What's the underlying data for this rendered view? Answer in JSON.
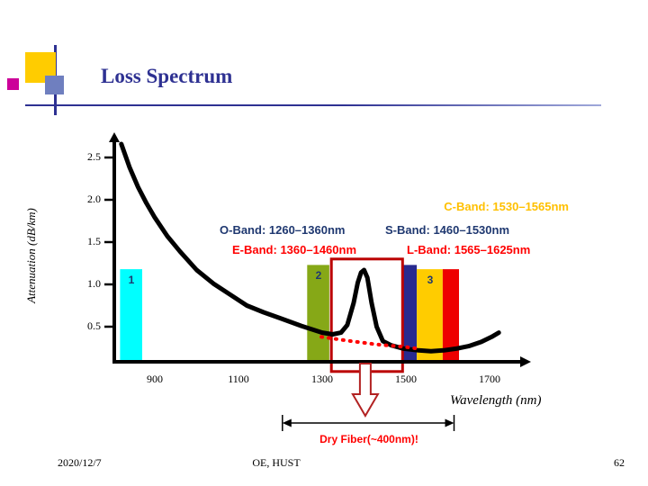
{
  "header": {
    "title": "Loss Spectrum"
  },
  "legend": {
    "c_band": {
      "text": "C-Band: 1530–1565nm",
      "color": "#FFC000"
    },
    "o_band": {
      "text": "O-Band: 1260–1360nm",
      "color": "#1F3870"
    },
    "s_band": {
      "text": "S-Band: 1460–1530nm",
      "color": "#1F3870"
    },
    "e_band": {
      "text": "E-Band: 1360–1460nm",
      "color": "#FF0000"
    },
    "l_band": {
      "text": "L-Band: 1565–1625nm",
      "color": "#FF0000"
    }
  },
  "annotations": {
    "dry_fiber_label": "Dry Fiber(~400nm)!"
  },
  "footer": {
    "date": "2020/12/7",
    "org": "OE, HUST",
    "page": "62"
  },
  "chart_data": {
    "type": "line",
    "title": "Loss Spectrum",
    "xlabel": "Wavelength (nm)",
    "ylabel": "Attenuation (dB/km)",
    "xlim": [
      800,
      1760
    ],
    "ylim": [
      0,
      2.75
    ],
    "x_ticks": [
      900,
      1100,
      1300,
      1500,
      1700
    ],
    "y_ticks": [
      {
        "v": 2.5,
        "label": "2.5"
      },
      {
        "v": 2.0,
        "label": "2.0"
      },
      {
        "v": 1.5,
        "label": "1.5"
      },
      {
        "v": 1.0,
        "label": "1.0"
      },
      {
        "v": 0.5,
        "label": "0.5"
      }
    ],
    "series": [
      {
        "name": "fiber-loss-curve",
        "color": "#000000",
        "width": 5,
        "x": [
          820,
          840,
          860,
          880,
          900,
          930,
          960,
          1000,
          1040,
          1080,
          1120,
          1160,
          1200,
          1250,
          1300,
          1325,
          1345,
          1360,
          1375,
          1385,
          1393,
          1400,
          1408,
          1418,
          1430,
          1445,
          1465,
          1495,
          1530,
          1560,
          1590,
          1620,
          1650,
          1680,
          1705,
          1722
        ],
        "y": [
          2.66,
          2.38,
          2.15,
          1.96,
          1.79,
          1.57,
          1.39,
          1.17,
          1.01,
          0.88,
          0.75,
          0.67,
          0.6,
          0.51,
          0.43,
          0.41,
          0.43,
          0.52,
          0.78,
          1.02,
          1.14,
          1.17,
          1.08,
          0.78,
          0.5,
          0.33,
          0.28,
          0.24,
          0.22,
          0.21,
          0.22,
          0.24,
          0.27,
          0.32,
          0.38,
          0.43
        ]
      },
      {
        "name": "dry-fiber-low-water-peak",
        "color": "#FF0000",
        "width": 4,
        "dash": "1 7",
        "x": [
          1298,
          1360,
          1430,
          1500,
          1522
        ],
        "y": [
          0.38,
          0.335,
          0.29,
          0.26,
          0.245
        ]
      }
    ],
    "windows": [
      {
        "label": "1",
        "color": "#00FFFF",
        "range": [
          817,
          870
        ],
        "att_top": 1.18
      },
      {
        "label": "2",
        "color": "#86A817",
        "range": [
          1264,
          1317
        ],
        "att_top": 1.23
      },
      {
        "label": "",
        "color": "#282A8F",
        "range": [
          1494,
          1526
        ],
        "att_top": 1.23
      },
      {
        "label": "3",
        "color": "#FFCC00",
        "range": [
          1526,
          1588
        ],
        "att_top": 1.18
      },
      {
        "label": "",
        "color": "#EE0000",
        "range": [
          1588,
          1627
        ],
        "att_top": 1.18
      }
    ],
    "peak_box": {
      "color": "#BB0000",
      "range": [
        1322,
        1492
      ],
      "att": [
        -0.03,
        1.3
      ]
    },
    "down_arrow": {
      "nm": 1403,
      "color": "#B22222"
    },
    "dry_fiber_span": {
      "range": [
        1205,
        1615
      ]
    }
  }
}
